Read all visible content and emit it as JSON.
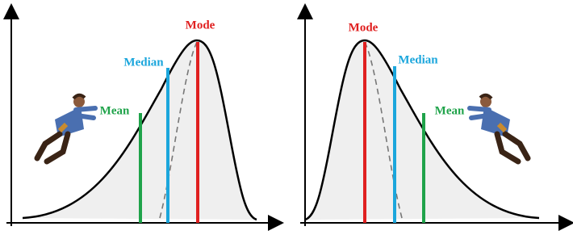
{
  "panels": [
    {
      "mode": "Mode",
      "median": "Median",
      "mean": "Mean"
    },
    {
      "mode": "Mode",
      "median": "Median",
      "mean": "Mean"
    }
  ]
}
